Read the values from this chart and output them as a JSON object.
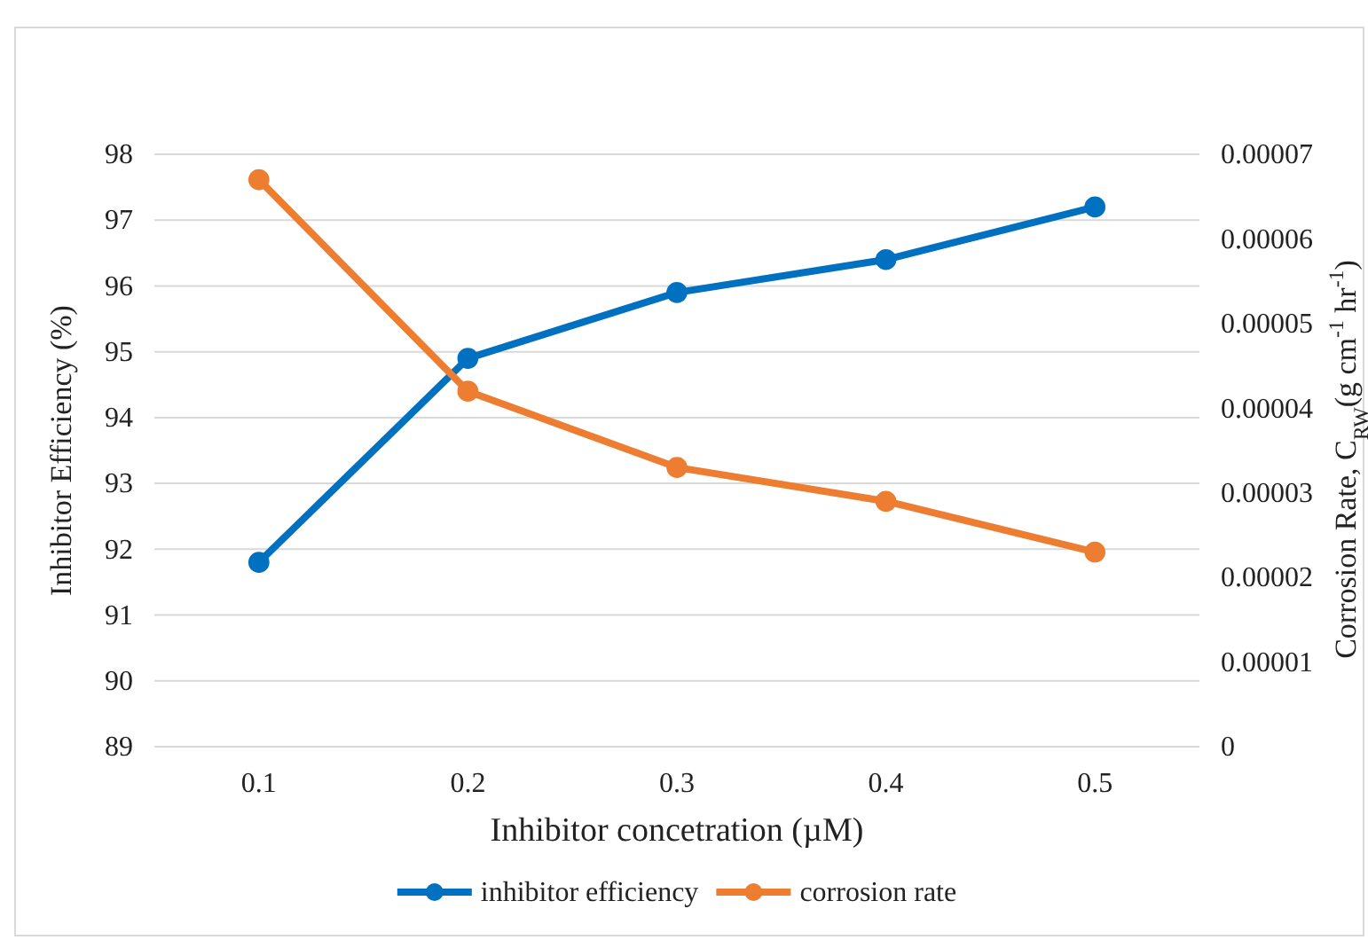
{
  "chart_data": {
    "type": "line",
    "categories": [
      "0.1",
      "0.2",
      "0.3",
      "0.4",
      "0.5"
    ],
    "series": [
      {
        "name": "inhibitor efficiency",
        "color": "#0070c0",
        "values": [
          91.8,
          94.9,
          95.9,
          96.4,
          97.2
        ]
      },
      {
        "name": "corrosion rate",
        "color": "#ed7d31",
        "axis": "y2",
        "values": [
          6.7e-05,
          4.2e-05,
          3.3e-05,
          2.9e-05,
          2.3e-05
        ]
      }
    ],
    "xlabel": "Inhibitor concetration (µM)",
    "ylabel": "Inhibitor Efficiency (%)",
    "y2label": "Corrosion Rate, C$_{RW}$(g cm$^{-1}$ hr$^{-1}$)",
    "ylim": [
      89,
      98
    ],
    "yticks": [
      89,
      90,
      91,
      92,
      93,
      94,
      95,
      96,
      97,
      98
    ],
    "y2lim": [
      0,
      7e-05
    ],
    "y2ticks": [
      0,
      {
        "value": 1e-05,
        "label": "0.00001"
      },
      {
        "value": 2e-05,
        "label": "0.00002"
      },
      {
        "value": 3e-05,
        "label": "0.00003"
      },
      {
        "value": 4e-05,
        "label": "0.00004"
      },
      {
        "value": 5e-05,
        "label": "0.00005"
      },
      {
        "value": 6e-05,
        "label": "0.00006"
      },
      {
        "value": 7e-05,
        "label": "0.00007"
      }
    ],
    "grid": "y",
    "legend": "bottom",
    "marker": "circle",
    "line_style": "solid"
  }
}
